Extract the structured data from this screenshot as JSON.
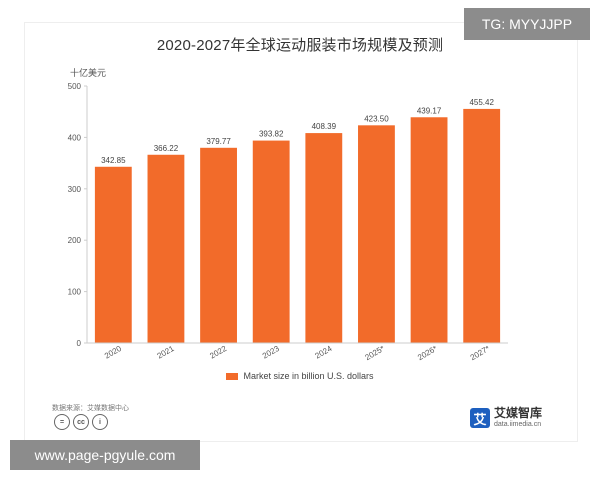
{
  "chart_data": {
    "type": "bar",
    "title": "2020-2027年全球运动服装市场规模及预测",
    "unit_label": "十亿美元",
    "categories": [
      "2020",
      "2021",
      "2022",
      "2023",
      "2024",
      "2025*",
      "2026*",
      "2027*"
    ],
    "series": [
      {
        "name": "Market size in billion U.S. dollars",
        "values": [
          342.85,
          366.22,
          379.77,
          393.82,
          408.39,
          423.5,
          439.17,
          455.42
        ],
        "value_labels": [
          "342.85",
          "366.22",
          "379.77",
          "393.82",
          "408.39",
          "423.50",
          "439.17",
          "455.42"
        ]
      }
    ],
    "ylim": [
      0,
      500
    ],
    "yticks": [
      0,
      100,
      200,
      300,
      400,
      500
    ],
    "grid": false,
    "legend_position": "bottom",
    "bar_color": "#f26b2a"
  },
  "footer": {
    "source": "数据来源：艾媒数据中心",
    "license_icons": [
      "=",
      "cc",
      "i"
    ],
    "brand_mark": "艾",
    "brand_name": "艾媒智库",
    "brand_url": "data.iimedia.cn"
  },
  "watermarks": {
    "top_right": "TG: MYYJJPP",
    "bottom_left": "www.page-pgyule.com"
  }
}
